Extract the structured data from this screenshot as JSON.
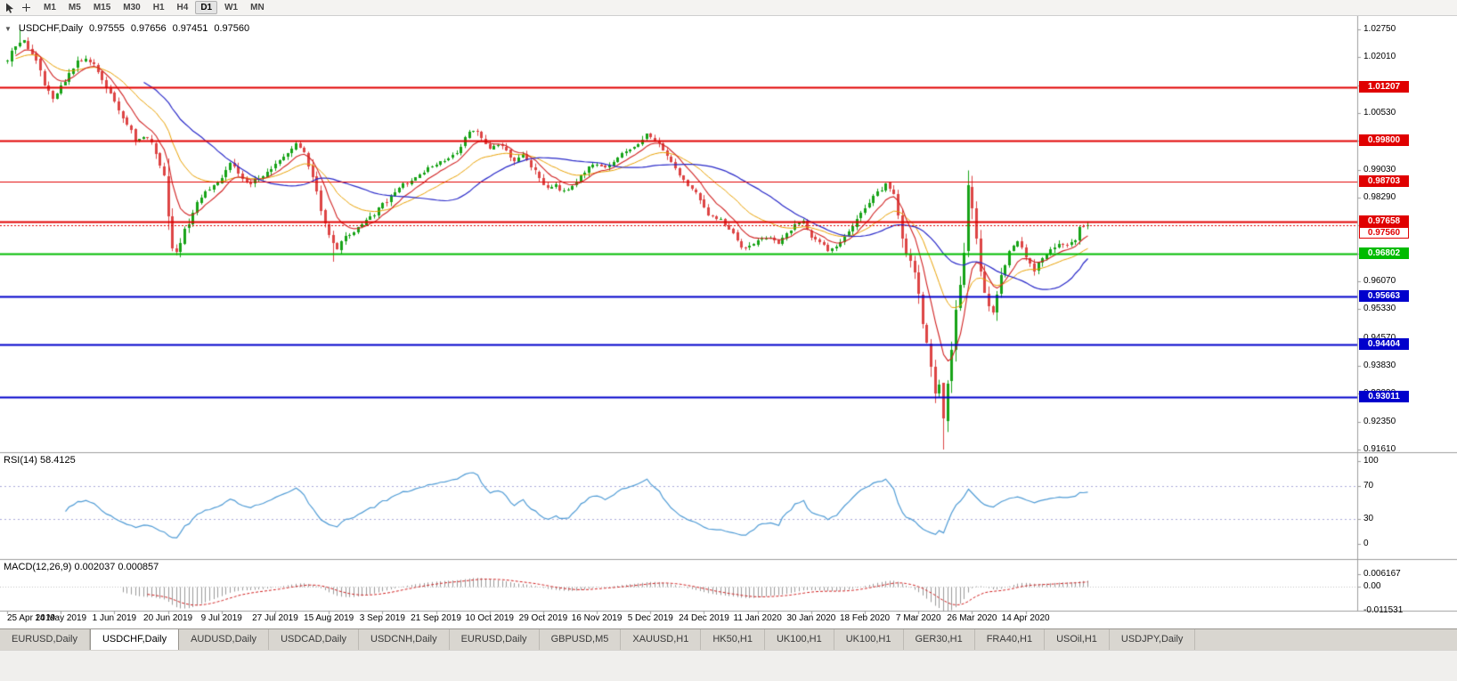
{
  "toolbar": {
    "timeframes": [
      {
        "label": "M1"
      },
      {
        "label": "M5"
      },
      {
        "label": "M15"
      },
      {
        "label": "M30"
      },
      {
        "label": "H1"
      },
      {
        "label": "H4"
      },
      {
        "label": "D1"
      },
      {
        "label": "W1"
      },
      {
        "label": "MN"
      }
    ],
    "active_timeframe": "D1"
  },
  "chart": {
    "symbol_label": "USDCHF,Daily",
    "ohlc": {
      "open": "0.97555",
      "high": "0.97656",
      "low": "0.97451",
      "close": "0.97560"
    },
    "price_axis_ticks": [
      {
        "label": "1.02750",
        "value": 1.0275
      },
      {
        "label": "1.02010",
        "value": 1.0201
      },
      {
        "label": "1.01270",
        "value": 1.0127
      },
      {
        "label": "1.00530",
        "value": 1.0053
      },
      {
        "label": "0.99790",
        "value": 0.9979
      },
      {
        "label": "0.99030",
        "value": 0.9903
      },
      {
        "label": "0.98290",
        "value": 0.9829
      },
      {
        "label": "0.97550",
        "value": 0.9755
      },
      {
        "label": "0.96810",
        "value": 0.9681
      },
      {
        "label": "0.96070",
        "value": 0.9607
      },
      {
        "label": "0.95330",
        "value": 0.9533
      },
      {
        "label": "0.94570",
        "value": 0.9457
      },
      {
        "label": "0.93830",
        "value": 0.9383
      },
      {
        "label": "0.93090",
        "value": 0.9309
      },
      {
        "label": "0.92350",
        "value": 0.9235
      },
      {
        "label": "0.91610",
        "value": 0.9161
      }
    ],
    "levels": [
      {
        "label": "1.01207",
        "value": 1.01207,
        "color": "#e00000",
        "width": 2
      },
      {
        "label": "0.99800",
        "value": 0.998,
        "color": "#e00000",
        "width": 2
      },
      {
        "label": "0.98703",
        "value": 0.98703,
        "color": "#e00000",
        "width": 1
      },
      {
        "label": "0.97658",
        "value": 0.97658,
        "color": "#e00000",
        "width": 2
      },
      {
        "label": "0.96802",
        "value": 0.96802,
        "color": "#00bb00",
        "width": 2
      },
      {
        "label": "0.95663",
        "value": 0.95663,
        "color": "#0000cc",
        "width": 2
      },
      {
        "label": "0.94404",
        "value": 0.94404,
        "color": "#0000cc",
        "width": 2
      },
      {
        "label": "0.93011",
        "value": 0.93011,
        "color": "#0000cc",
        "width": 2
      }
    ],
    "current_price": {
      "label": "0.97560",
      "value": 0.9756,
      "color": "#e00000"
    },
    "date_labels": [
      {
        "text": "25 Apr 2019",
        "index": 0
      },
      {
        "text": "14 May 2019",
        "index": 13
      },
      {
        "text": "1 Jun 2019",
        "index": 26
      },
      {
        "text": "20 Jun 2019",
        "index": 39
      },
      {
        "text": "9 Jul 2019",
        "index": 52
      },
      {
        "text": "27 Jul 2019",
        "index": 65
      },
      {
        "text": "15 Aug 2019",
        "index": 78
      },
      {
        "text": "3 Sep 2019",
        "index": 91
      },
      {
        "text": "21 Sep 2019",
        "index": 104
      },
      {
        "text": "10 Oct 2019",
        "index": 117
      },
      {
        "text": "29 Oct 2019",
        "index": 130
      },
      {
        "text": "16 Nov 2019",
        "index": 143
      },
      {
        "text": "5 Dec 2019",
        "index": 156
      },
      {
        "text": "24 Dec 2019",
        "index": 169
      },
      {
        "text": "11 Jan 2020",
        "index": 182
      },
      {
        "text": "30 Jan 2020",
        "index": 195
      },
      {
        "text": "18 Feb 2020",
        "index": 208
      },
      {
        "text": "7 Mar 2020",
        "index": 221
      },
      {
        "text": "26 Mar 2020",
        "index": 234
      },
      {
        "text": "14 Apr 2020",
        "index": 247
      }
    ],
    "series": {
      "count": 263,
      "close_anchors": [
        [
          0,
          1.019
        ],
        [
          2,
          1.0235
        ],
        [
          4,
          1.0245
        ],
        [
          6,
          1.0215
        ],
        [
          9,
          1.013
        ],
        [
          11,
          1.0095
        ],
        [
          14,
          1.014
        ],
        [
          17,
          1.0185
        ],
        [
          19,
          1.02
        ],
        [
          22,
          1.0165
        ],
        [
          25,
          1.0105
        ],
        [
          28,
          1.004
        ],
        [
          31,
          0.9985
        ],
        [
          34,
          0.9985
        ],
        [
          36,
          0.995
        ],
        [
          38,
          0.989
        ],
        [
          39,
          0.976
        ],
        [
          40,
          0.9705
        ],
        [
          41,
          0.9685
        ],
        [
          43,
          0.974
        ],
        [
          46,
          0.982
        ],
        [
          49,
          0.9855
        ],
        [
          52,
          0.988
        ],
        [
          54,
          0.9925
        ],
        [
          56,
          0.989
        ],
        [
          59,
          0.9865
        ],
        [
          62,
          0.989
        ],
        [
          64,
          0.991
        ],
        [
          66,
          0.993
        ],
        [
          68,
          0.995
        ],
        [
          70,
          0.9975
        ],
        [
          72,
          0.9945
        ],
        [
          74,
          0.989
        ],
        [
          76,
          0.98
        ],
        [
          78,
          0.972
        ],
        [
          80,
          0.9695
        ],
        [
          82,
          0.9725
        ],
        [
          84,
          0.974
        ],
        [
          86,
          0.9755
        ],
        [
          88,
          0.9775
        ],
        [
          91,
          0.981
        ],
        [
          94,
          0.9845
        ],
        [
          97,
          0.987
        ],
        [
          100,
          0.9895
        ],
        [
          103,
          0.991
        ],
        [
          106,
          0.993
        ],
        [
          109,
          0.995
        ],
        [
          111,
          0.999
        ],
        [
          113,
          1.001
        ],
        [
          115,
          0.9985
        ],
        [
          117,
          0.996
        ],
        [
          119,
          0.997
        ],
        [
          121,
          0.995
        ],
        [
          123,
          0.993
        ],
        [
          125,
          0.9945
        ],
        [
          127,
          0.9915
        ],
        [
          129,
          0.988
        ],
        [
          131,
          0.9855
        ],
        [
          133,
          0.986
        ],
        [
          135,
          0.9845
        ],
        [
          137,
          0.9865
        ],
        [
          139,
          0.9885
        ],
        [
          141,
          0.9905
        ],
        [
          143,
          0.992
        ],
        [
          145,
          0.9905
        ],
        [
          147,
          0.993
        ],
        [
          149,
          0.995
        ],
        [
          151,
          0.996
        ],
        [
          153,
          0.9975
        ],
        [
          155,
          0.9995
        ],
        [
          157,
          0.9985
        ],
        [
          159,
          0.9955
        ],
        [
          161,
          0.992
        ],
        [
          163,
          0.989
        ],
        [
          165,
          0.9855
        ],
        [
          167,
          0.984
        ],
        [
          169,
          0.98
        ],
        [
          171,
          0.9775
        ],
        [
          173,
          0.977
        ],
        [
          175,
          0.9745
        ],
        [
          177,
          0.971
        ],
        [
          179,
          0.969
        ],
        [
          181,
          0.9705
        ],
        [
          183,
          0.972
        ],
        [
          185,
          0.9725
        ],
        [
          187,
          0.971
        ],
        [
          189,
          0.973
        ],
        [
          191,
          0.9755
        ],
        [
          193,
          0.977
        ],
        [
          195,
          0.973
        ],
        [
          197,
          0.971
        ],
        [
          199,
          0.969
        ],
        [
          201,
          0.9695
        ],
        [
          203,
          0.972
        ],
        [
          205,
          0.9755
        ],
        [
          207,
          0.979
        ],
        [
          209,
          0.982
        ],
        [
          211,
          0.984
        ],
        [
          213,
          0.9865
        ],
        [
          215,
          0.984
        ],
        [
          216,
          0.979
        ],
        [
          217,
          0.9735
        ],
        [
          218,
          0.969
        ],
        [
          219,
          0.9655
        ],
        [
          220,
          0.962
        ],
        [
          221,
          0.956
        ],
        [
          222,
          0.9505
        ],
        [
          223,
          0.945
        ],
        [
          224,
          0.938
        ],
        [
          225,
          0.929
        ],
        [
          226,
          0.933
        ],
        [
          227,
          0.925
        ],
        [
          228,
          0.935
        ],
        [
          229,
          0.944
        ],
        [
          230,
          0.952
        ],
        [
          231,
          0.961
        ],
        [
          232,
          0.97
        ],
        [
          233,
          0.986
        ],
        [
          234,
          0.979
        ],
        [
          235,
          0.97
        ],
        [
          236,
          0.964
        ],
        [
          237,
          0.958
        ],
        [
          238,
          0.9545
        ],
        [
          239,
          0.953
        ],
        [
          240,
          0.9575
        ],
        [
          241,
          0.962
        ],
        [
          242,
          0.966
        ],
        [
          243,
          0.969
        ],
        [
          245,
          0.971
        ],
        [
          247,
          0.967
        ],
        [
          249,
          0.964
        ],
        [
          251,
          0.9665
        ],
        [
          253,
          0.969
        ],
        [
          255,
          0.971
        ],
        [
          257,
          0.97
        ],
        [
          259,
          0.972
        ],
        [
          260,
          0.9745
        ],
        [
          261,
          0.975
        ],
        [
          262,
          0.9756
        ]
      ],
      "wick_overrides": {
        "3": {
          "high": 1.0275
        },
        "40": {
          "low": 0.9692
        },
        "79": {
          "low": 0.9659
        },
        "227": {
          "low": 0.9161
        },
        "233": {
          "high": 0.9901
        }
      }
    },
    "colors": {
      "up": "#17a317",
      "down": "#dd4444",
      "ma_fast": "#d02020",
      "ma_mid": "#e8a000",
      "ma_slow": "#2828c8",
      "level_red": "#e00000",
      "level_green": "#00bb00",
      "level_blue": "#0000cc"
    }
  },
  "rsi": {
    "label": "RSI(14) 58.4125",
    "period": 14,
    "value": "58.4125",
    "color": "#4f9bd5",
    "levels": [
      70,
      30
    ],
    "ticks": [
      {
        "label": "100",
        "value": 100
      },
      {
        "label": "70",
        "value": 70
      },
      {
        "label": "30",
        "value": 30
      },
      {
        "label": "0",
        "value": 0
      }
    ]
  },
  "macd": {
    "label": "MACD(12,26,9) 0.002037 0.000857",
    "fast": 12,
    "slow": 26,
    "signal": 9,
    "values": [
      "0.002037",
      "0.000857"
    ],
    "signal_color": "#d02020",
    "hist_color": "#9a9a9a",
    "ticks": [
      {
        "label": "0.006167",
        "value": 0.006167
      },
      {
        "label": "0.00",
        "value": 0
      },
      {
        "label": "-0.011531",
        "value": -0.011531
      }
    ]
  },
  "tabs": [
    {
      "label": "EURUSD,Daily",
      "active": false
    },
    {
      "label": "USDCHF,Daily",
      "active": true
    },
    {
      "label": "AUDUSD,Daily",
      "active": false
    },
    {
      "label": "USDCAD,Daily",
      "active": false
    },
    {
      "label": "USDCNH,Daily",
      "active": false
    },
    {
      "label": "EURUSD,Daily",
      "active": false
    },
    {
      "label": "GBPUSD,M5",
      "active": false
    },
    {
      "label": "XAUUSD,H1",
      "active": false
    },
    {
      "label": "HK50,H1",
      "active": false
    },
    {
      "label": "UK100,H1",
      "active": false
    },
    {
      "label": "UK100,H1",
      "active": false
    },
    {
      "label": "GER30,H1",
      "active": false
    },
    {
      "label": "FRA40,H1",
      "active": false
    },
    {
      "label": "USOil,H1",
      "active": false
    },
    {
      "label": "USDJPY,Daily",
      "active": false
    }
  ]
}
